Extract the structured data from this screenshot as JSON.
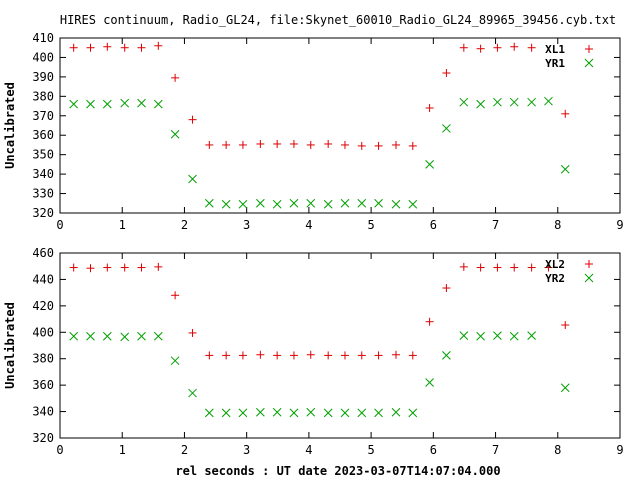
{
  "title": "HIRES continuum, Radio_GL24, file:Skynet_60010_Radio_GL24_89965_39456.cyb.txt",
  "xlabel": "rel seconds : UT date 2023-03-07T14:07:04.000",
  "chart_data": [
    {
      "type": "scatter",
      "ylabel": "Uncalibrated",
      "xlim": [
        0,
        9
      ],
      "ylim": [
        320,
        410
      ],
      "xticks": [
        0,
        1,
        2,
        3,
        4,
        5,
        6,
        7,
        8,
        9
      ],
      "yticks": [
        320,
        330,
        340,
        350,
        360,
        370,
        380,
        390,
        400,
        410
      ],
      "legend_position": "top-right",
      "grid": false,
      "x": [
        0.22,
        0.49,
        0.76,
        1.04,
        1.31,
        1.58,
        1.85,
        2.13,
        2.4,
        2.67,
        2.94,
        3.22,
        3.49,
        3.76,
        4.03,
        4.31,
        4.58,
        4.85,
        5.12,
        5.4,
        5.67,
        5.94,
        6.21,
        6.49,
        6.76,
        7.03,
        7.3,
        7.58,
        7.85,
        8.12
      ],
      "series": [
        {
          "name": "XL1",
          "marker": "plus",
          "color": "#dd0000",
          "x": [
            0.22,
            0.49,
            0.76,
            1.04,
            1.31,
            1.58,
            1.85,
            2.13,
            2.4,
            2.67,
            2.94,
            3.22,
            3.49,
            3.76,
            4.03,
            4.31,
            4.58,
            4.85,
            5.12,
            5.4,
            5.67,
            5.94,
            6.21,
            6.49,
            6.76,
            7.03,
            7.3,
            7.58,
            8.12
          ],
          "values": [
            405,
            405,
            405.5,
            405,
            405,
            406,
            389.5,
            368,
            355,
            355,
            355,
            355.5,
            355.5,
            355.5,
            355,
            355.5,
            355,
            354.5,
            354.5,
            355,
            354.5,
            374,
            392,
            405,
            404.5,
            405,
            405.5,
            405,
            371
          ]
        },
        {
          "name": "YR1",
          "marker": "x",
          "color": "#00a000",
          "x": [
            0.22,
            0.49,
            0.76,
            1.04,
            1.31,
            1.58,
            1.85,
            2.13,
            2.4,
            2.67,
            2.94,
            3.22,
            3.49,
            3.76,
            4.03,
            4.31,
            4.58,
            4.85,
            5.12,
            5.4,
            5.67,
            5.94,
            6.21,
            6.49,
            6.76,
            7.03,
            7.3,
            7.58,
            7.85,
            8.12
          ],
          "values": [
            376,
            376,
            376,
            376.5,
            376.5,
            376,
            360.5,
            337.5,
            325,
            324.5,
            324.5,
            325,
            324.5,
            325,
            325,
            324.5,
            325,
            325,
            325,
            324.5,
            324.5,
            345,
            363.5,
            377,
            376,
            377,
            377,
            377,
            377.5,
            342.5
          ]
        }
      ]
    },
    {
      "type": "scatter",
      "ylabel": "Uncalibrated",
      "xlim": [
        0,
        9
      ],
      "ylim": [
        320,
        460
      ],
      "xticks": [
        0,
        1,
        2,
        3,
        4,
        5,
        6,
        7,
        8,
        9
      ],
      "yticks": [
        320,
        340,
        360,
        380,
        400,
        420,
        440,
        460
      ],
      "legend_position": "top-right",
      "grid": false,
      "series": [
        {
          "name": "XL2",
          "marker": "plus",
          "color": "#dd0000",
          "x": [
            0.22,
            0.49,
            0.76,
            1.04,
            1.31,
            1.58,
            1.85,
            2.13,
            2.4,
            2.67,
            2.94,
            3.22,
            3.49,
            3.76,
            4.03,
            4.31,
            4.58,
            4.85,
            5.12,
            5.4,
            5.67,
            5.94,
            6.21,
            6.49,
            6.76,
            7.03,
            7.3,
            7.58,
            7.85,
            8.12
          ],
          "values": [
            449,
            448.5,
            449,
            449,
            449,
            449.5,
            428,
            399.5,
            382.5,
            382.5,
            382.5,
            383,
            382.5,
            382.5,
            383,
            382.5,
            382.5,
            382.5,
            382.5,
            383,
            382.5,
            408,
            433.5,
            449.5,
            449,
            449,
            449,
            449,
            449,
            405.5
          ]
        },
        {
          "name": "YR2",
          "marker": "x",
          "color": "#00a000",
          "x": [
            0.22,
            0.49,
            0.76,
            1.04,
            1.31,
            1.58,
            1.85,
            2.13,
            2.4,
            2.67,
            2.94,
            3.22,
            3.49,
            3.76,
            4.03,
            4.31,
            4.58,
            4.85,
            5.12,
            5.4,
            5.67,
            5.94,
            6.21,
            6.49,
            6.76,
            7.03,
            7.3,
            7.58,
            8.12
          ],
          "values": [
            397,
            397,
            397,
            396.5,
            397,
            397,
            378.5,
            354,
            339,
            339,
            339,
            339.5,
            339.5,
            339,
            339.5,
            339,
            339,
            339,
            339,
            339.5,
            339,
            362,
            382.5,
            397.5,
            397,
            397.5,
            397,
            397.5,
            358
          ]
        }
      ]
    }
  ]
}
